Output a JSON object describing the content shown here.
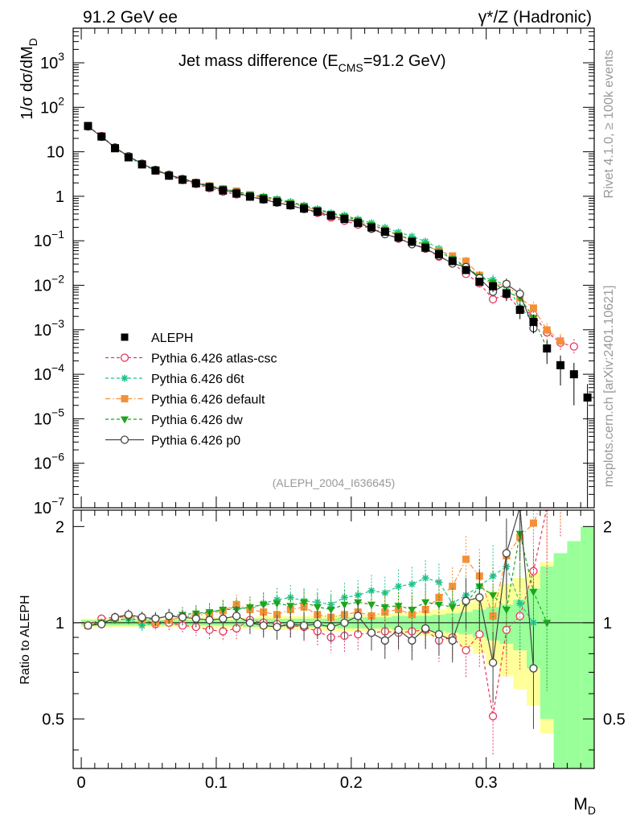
{
  "header": {
    "left": "91.2 GeV ee",
    "right": "γ*/Z (Hadronic)"
  },
  "side": {
    "rivet": "Rivet 4.1.0, ≥ 100k events",
    "mcplots": "mcplots.cern.ch [arXiv:2401.10621]"
  },
  "chart_data": {
    "type": "scatter",
    "title": "Jet mass difference (E_CMS=91.2 GeV)",
    "title_main": "Jet mass difference (E",
    "title_sub": "CMS",
    "title_tail": "=91.2 GeV)",
    "reference": "(ALEPH_2004_I636645)",
    "xlabel": "M_D",
    "xlabel_main": "M",
    "xlabel_sub": "D",
    "ylabel": "1/σ dσ/dM_D",
    "ylabel_main": "1/σ  dσ/dM",
    "ylabel_sub": "D",
    "ratio_ylabel": "Ratio to ALEPH",
    "xlim": [
      -0.006,
      0.38
    ],
    "ylim": [
      1e-07,
      6000
    ],
    "ratio_ylim": [
      0.35,
      2.25
    ],
    "xticks": [
      "0",
      "0.1",
      "0.2",
      "0.3"
    ],
    "xtick_values": [
      0,
      0.1,
      0.2,
      0.3
    ],
    "yticks": [
      {
        "b": "10",
        "e": "3",
        "v": 1000
      },
      {
        "b": "10",
        "e": "2",
        "v": 100
      },
      {
        "b": "10",
        "e": "",
        "v": 10
      },
      {
        "b": "1",
        "e": "",
        "v": 1
      },
      {
        "b": "10",
        "e": "−1",
        "v": 0.1
      },
      {
        "b": "10",
        "e": "−2",
        "v": 0.01
      },
      {
        "b": "10",
        "e": "−3",
        "v": 0.001
      },
      {
        "b": "10",
        "e": "−4",
        "v": 0.0001
      },
      {
        "b": "10",
        "e": "−5",
        "v": 1e-05
      },
      {
        "b": "10",
        "e": "−6",
        "v": 1e-06
      },
      {
        "b": "10",
        "e": "−7",
        "v": 1e-07
      }
    ],
    "ratio_yticks": [
      "0.5",
      "1",
      "2"
    ],
    "ratio_ytick_values": [
      0.5,
      1,
      2
    ],
    "data": {
      "name": "ALEPH",
      "x": [
        0.005,
        0.015,
        0.025,
        0.035,
        0.045,
        0.055,
        0.065,
        0.075,
        0.085,
        0.095,
        0.105,
        0.115,
        0.125,
        0.135,
        0.145,
        0.155,
        0.165,
        0.175,
        0.185,
        0.195,
        0.205,
        0.215,
        0.225,
        0.235,
        0.245,
        0.255,
        0.265,
        0.275,
        0.285,
        0.295,
        0.305,
        0.315,
        0.325,
        0.335,
        0.345,
        0.355,
        0.365,
        0.375
      ],
      "y": [
        38,
        22,
        12,
        7.5,
        5.2,
        3.8,
        2.9,
        2.35,
        1.95,
        1.6,
        1.35,
        1.15,
        0.98,
        0.86,
        0.74,
        0.63,
        0.53,
        0.45,
        0.37,
        0.31,
        0.25,
        0.2,
        0.16,
        0.12,
        0.095,
        0.07,
        0.05,
        0.035,
        0.022,
        0.012,
        0.0095,
        0.0065,
        0.0028,
        0.0015,
        0.00038,
        0.00016,
        0.0001,
        3e-05
      ],
      "band_outer": [
        0.03,
        0.03,
        0.03,
        0.03,
        0.03,
        0.03,
        0.03,
        0.03,
        0.04,
        0.04,
        0.04,
        0.04,
        0.04,
        0.05,
        0.05,
        0.05,
        0.05,
        0.05,
        0.06,
        0.06,
        0.06,
        0.06,
        0.07,
        0.07,
        0.08,
        0.09,
        0.1,
        0.12,
        0.16,
        0.2,
        0.26,
        0.32,
        0.38,
        0.45,
        0.55,
        0.65,
        0.8,
        1.0
      ],
      "band_inner": [
        0.02,
        0.02,
        0.02,
        0.02,
        0.02,
        0.02,
        0.02,
        0.02,
        0.02,
        0.02,
        0.02,
        0.02,
        0.03,
        0.03,
        0.03,
        0.03,
        0.03,
        0.03,
        0.03,
        0.04,
        0.04,
        0.04,
        0.04,
        0.05,
        0.05,
        0.05,
        0.06,
        0.07,
        0.08,
        0.1,
        0.12,
        0.14,
        0.18,
        0.28,
        0.5,
        0.65,
        0.8,
        1.0
      ]
    },
    "series": [
      {
        "name": "Pythia 6.426 atlas-csc",
        "color": "#e8365f",
        "marker": "circle-open",
        "dash": "4,3",
        "ratio": [
          0.98,
          1.03,
          1.04,
          1.05,
          1.03,
          0.99,
          1.0,
          0.98,
          0.97,
          0.95,
          0.94,
          0.96,
          1.02,
          1.0,
          0.99,
          0.98,
          0.97,
          0.94,
          0.9,
          0.91,
          0.92,
          0.93,
          0.94,
          0.93,
          0.94,
          0.95,
          0.88,
          0.9,
          0.82,
          0.92,
          0.51,
          0.95,
          1.05,
          1.45,
          2.3,
          3.2,
          4.2,
          0
        ]
      },
      {
        "name": "Pythia 6.426 d6t",
        "color": "#1ec48e",
        "marker": "star",
        "dash": "4,3",
        "ratio": [
          0.98,
          1.0,
          1.02,
          1.03,
          0.98,
          1.0,
          1.02,
          1.04,
          1.06,
          1.08,
          1.1,
          1.12,
          1.1,
          1.15,
          1.18,
          1.2,
          1.17,
          1.16,
          1.14,
          1.2,
          1.22,
          1.26,
          1.24,
          1.3,
          1.32,
          1.38,
          1.34,
          1.15,
          1.22,
          1.3,
          1.4,
          1.5,
          1.15,
          1.0,
          0,
          0,
          0,
          0
        ]
      },
      {
        "name": "Pythia 6.426 default",
        "color": "#f59038",
        "marker": "square",
        "dash": "6,3,1.5,3",
        "ratio": [
          0.98,
          1.0,
          1.03,
          1.05,
          1.02,
          1.0,
          1.02,
          1.04,
          1.05,
          1.07,
          1.09,
          1.14,
          1.1,
          1.08,
          1.06,
          1.1,
          1.12,
          1.06,
          1.04,
          1.06,
          1.08,
          1.05,
          1.08,
          1.1,
          1.06,
          1.1,
          1.2,
          1.3,
          1.58,
          1.4,
          1.05,
          1.62,
          1.85,
          2.05,
          2.6,
          3.5,
          0,
          0
        ]
      },
      {
        "name": "Pythia 6.426 dw",
        "color": "#1ea51e",
        "marker": "triangle-down",
        "dash": "4,3",
        "ratio": [
          0.98,
          1.0,
          1.02,
          1.03,
          1.02,
          1.03,
          1.05,
          1.06,
          1.07,
          1.08,
          1.1,
          1.1,
          1.12,
          1.14,
          1.15,
          1.13,
          1.16,
          1.12,
          1.1,
          1.14,
          1.16,
          1.14,
          1.12,
          1.13,
          1.1,
          1.16,
          1.14,
          1.12,
          1.15,
          1.3,
          1.22,
          1.1,
          1.9,
          1.25,
          1.0,
          0,
          0,
          0
        ]
      },
      {
        "name": "Pythia 6.426 p0",
        "color": "#444444",
        "marker": "circle-open",
        "dash": "",
        "ratio": [
          0.98,
          0.99,
          1.04,
          1.06,
          1.04,
          1.03,
          1.05,
          1.04,
          1.03,
          1.02,
          1.03,
          1.05,
          1.0,
          0.98,
          0.97,
          0.99,
          0.98,
          0.99,
          0.97,
          1.0,
          1.05,
          0.93,
          0.88,
          0.95,
          0.88,
          0.96,
          0.92,
          0.88,
          1.17,
          1.2,
          0.75,
          1.65,
          2.3,
          0.72,
          0,
          0,
          0,
          0
        ]
      }
    ]
  }
}
